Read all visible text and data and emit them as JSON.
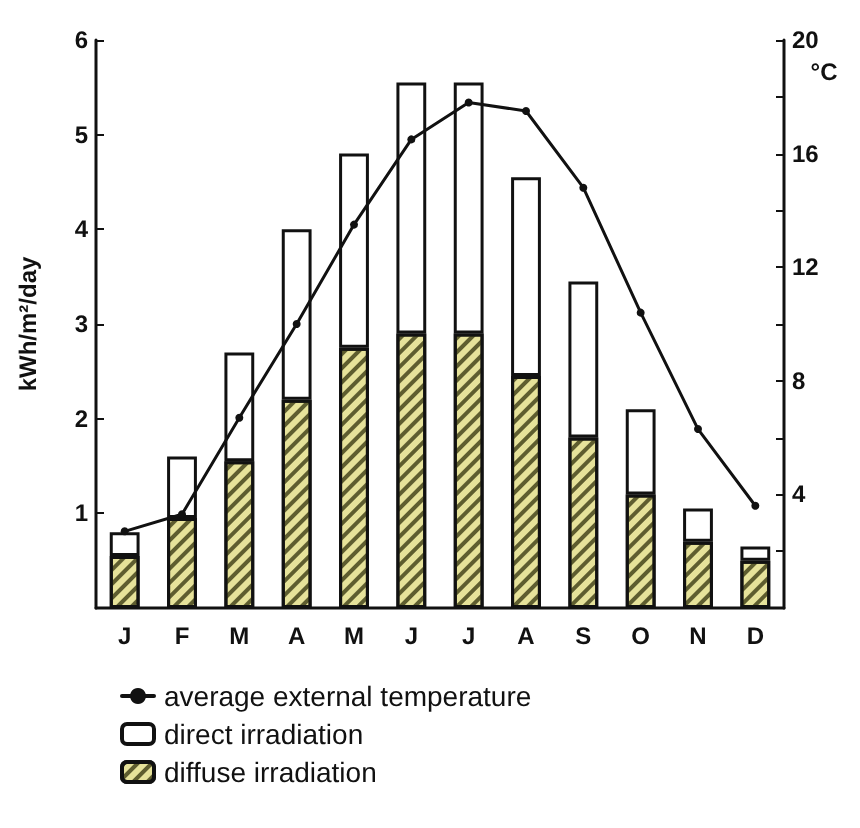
{
  "chart_data": {
    "type": "bar",
    "stacked": true,
    "categories": [
      "J",
      "F",
      "M",
      "A",
      "M",
      "J",
      "J",
      "A",
      "S",
      "O",
      "N",
      "D"
    ],
    "series": [
      {
        "name": "diffuse irradiation",
        "color": "#e6e29a",
        "values": [
          0.55,
          0.95,
          1.55,
          2.2,
          2.75,
          2.9,
          2.9,
          2.45,
          1.8,
          1.2,
          0.7,
          0.5
        ]
      },
      {
        "name": "direct irradiation",
        "color": "#ffffff",
        "values": [
          0.25,
          0.65,
          1.15,
          1.8,
          2.05,
          2.65,
          2.65,
          2.1,
          1.65,
          0.9,
          0.35,
          0.15
        ]
      },
      {
        "name": "average external temperature",
        "type": "line",
        "axis": "y2",
        "color": "#111111",
        "marker": "circle",
        "values": [
          2.7,
          3.3,
          6.7,
          10,
          13.5,
          16.5,
          17.8,
          17.5,
          14.8,
          10.4,
          6.3,
          3.6
        ]
      }
    ],
    "ylabel": "kWh/m²/day",
    "y2label": "°C",
    "ylim": [
      0,
      6
    ],
    "yticks": [
      1,
      2,
      3,
      4,
      5,
      6
    ],
    "y2lim": [
      0,
      20
    ],
    "y2ticks": [
      {
        "value": 2,
        "label": null
      },
      4,
      {
        "value": 6,
        "label": null
      },
      8,
      {
        "value": 10,
        "label": null
      },
      12,
      {
        "value": 14,
        "label": null
      },
      16,
      {
        "value": 18,
        "label": null
      },
      20
    ],
    "legend": "bottom"
  }
}
